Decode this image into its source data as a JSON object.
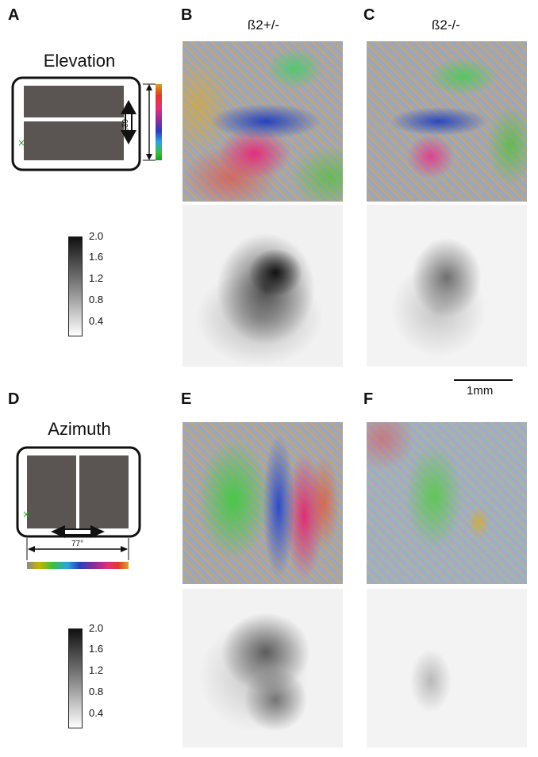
{
  "figure": {
    "panel_labels": [
      "A",
      "B",
      "C",
      "D",
      "E",
      "F"
    ],
    "columns": {
      "b_title": "ß2+/-",
      "c_title": "ß2-/-"
    },
    "elevation": {
      "title": "Elevation",
      "angle_label": "62°"
    },
    "azimuth": {
      "title": "Azimuth",
      "angle_label": "77°"
    },
    "colorbar": {
      "ticks": [
        "2.0",
        "1.6",
        "1.2",
        "0.8",
        "0.4"
      ]
    },
    "scale_bar": {
      "label": "1mm"
    },
    "colors": {
      "screen": "#5a5553",
      "monitor_border": "#111111",
      "stimulus_marker": "#2aa52a",
      "phase_spectrum": [
        "#8a8a8a",
        "#c8b400",
        "#3cbf3c",
        "#2ea3e0",
        "#2b3fb8",
        "#8a2d9a",
        "#e0307a",
        "#e03a2a",
        "#d87a2a"
      ]
    }
  }
}
